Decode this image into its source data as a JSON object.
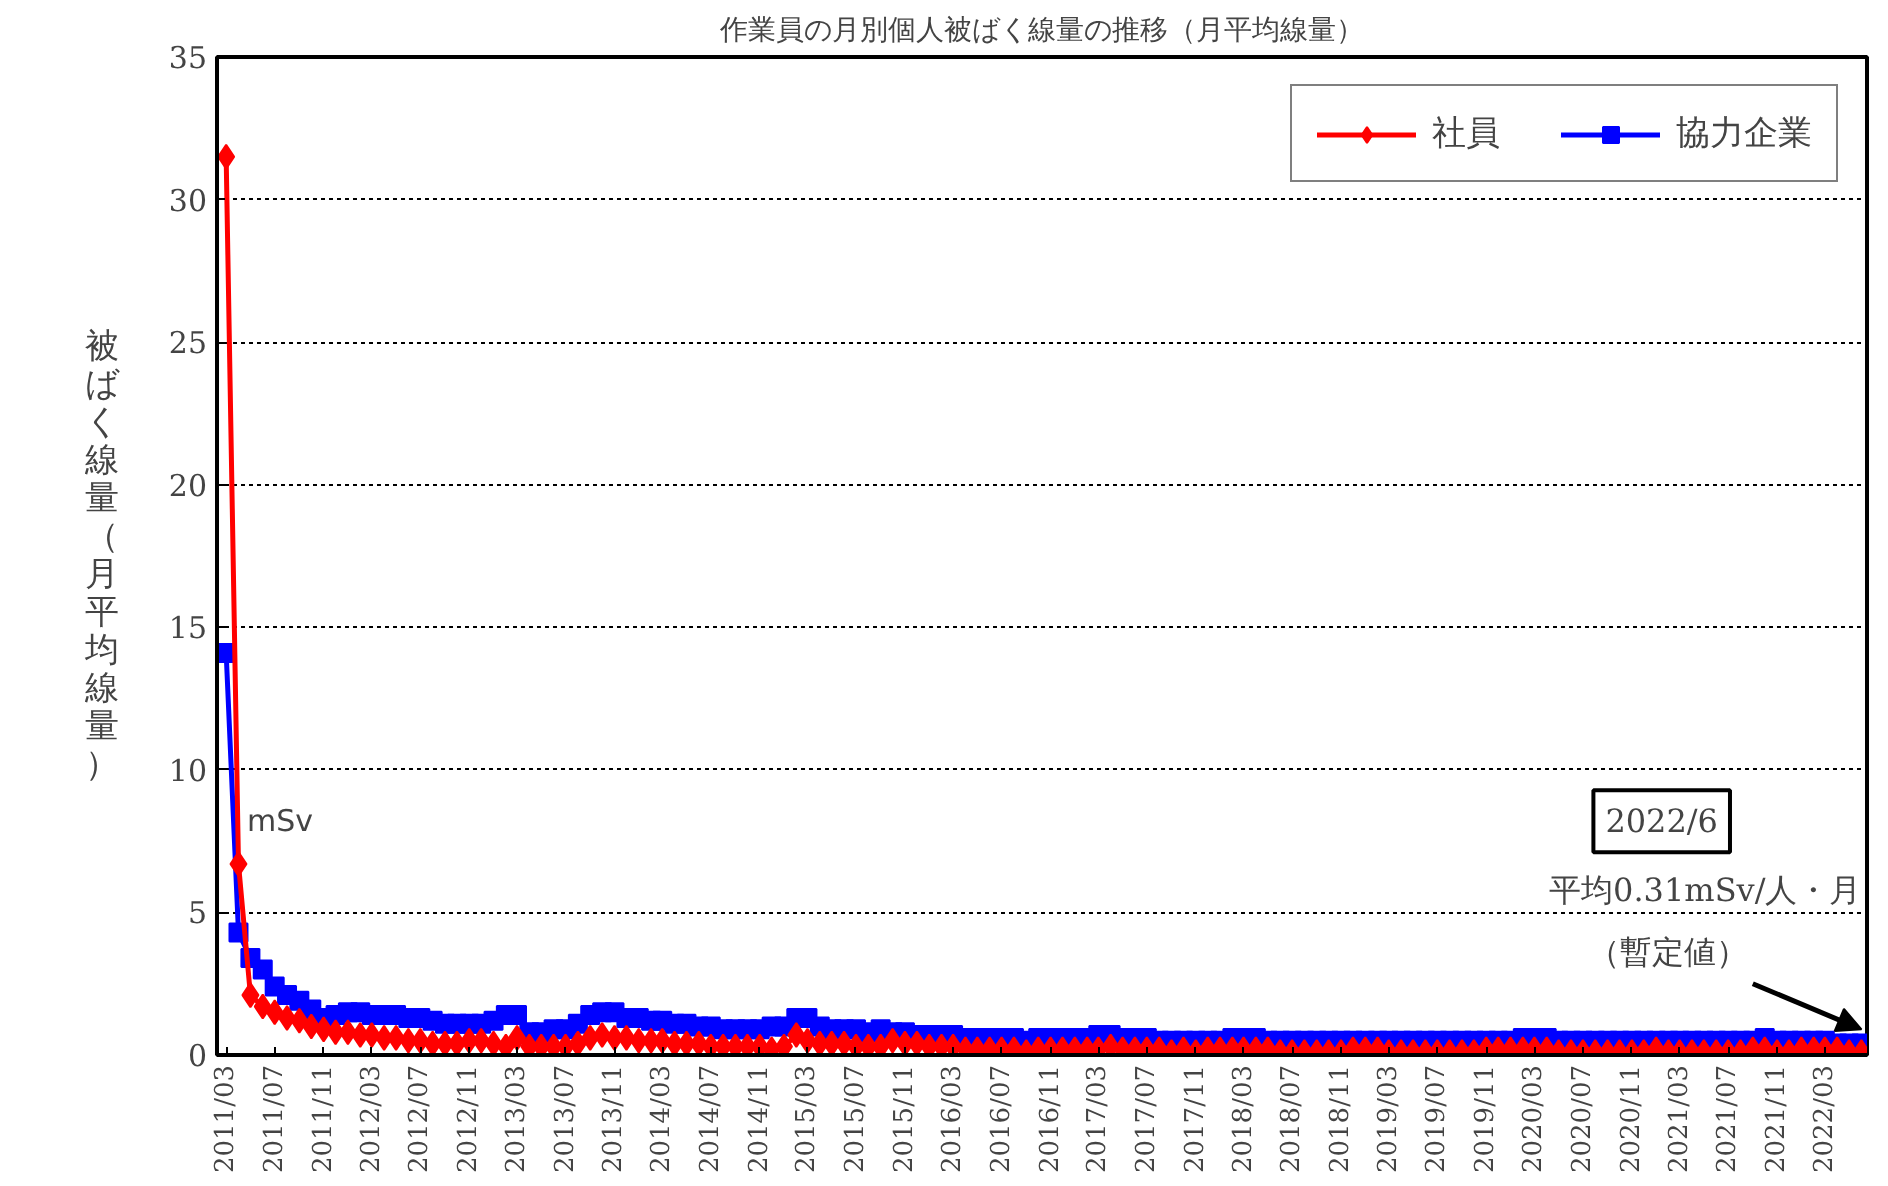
{
  "chart_data": {
    "type": "line",
    "title": "作業員の月別個人被ばく線量の推移（月平均線量）",
    "ylabel": "被ばく線量（月平均線量）",
    "x": [
      "2011-03",
      "2011-04",
      "2011-05",
      "2011-06",
      "2011-07",
      "2011-08",
      "2011-09",
      "2011-10",
      "2011-11",
      "2011-12",
      "2012-01",
      "2012-02",
      "2012-03",
      "2012-04",
      "2012-05",
      "2012-06",
      "2012-07",
      "2012-08",
      "2012-09",
      "2012-10",
      "2012-11",
      "2012-12",
      "2013-01",
      "2013-02",
      "2013-03",
      "2013-04",
      "2013-05",
      "2013-06",
      "2013-07",
      "2013-08",
      "2013-09",
      "2013-10",
      "2013-11",
      "2013-12",
      "2014-01",
      "2014-02",
      "2014-03",
      "2014-04",
      "2014-05",
      "2014-06",
      "2014-07",
      "2014-08",
      "2014-09",
      "2014-10",
      "2014-11",
      "2014-12",
      "2015-01",
      "2015-02",
      "2015-03",
      "2015-04",
      "2015-05",
      "2015-06",
      "2015-07",
      "2015-08",
      "2015-09",
      "2015-10",
      "2015-11",
      "2015-12",
      "2016-01",
      "2016-02",
      "2016-03",
      "2016-04",
      "2016-05",
      "2016-06",
      "2016-07",
      "2016-08",
      "2016-09",
      "2016-10",
      "2016-11",
      "2016-12",
      "2017-01",
      "2017-02",
      "2017-03",
      "2017-04",
      "2017-05",
      "2017-06",
      "2017-07",
      "2017-08",
      "2017-09",
      "2017-10",
      "2017-11",
      "2017-12",
      "2018-01",
      "2018-02",
      "2018-03",
      "2018-04",
      "2018-05",
      "2018-06",
      "2018-07",
      "2018-08",
      "2018-09",
      "2018-10",
      "2018-11",
      "2018-12",
      "2019-01",
      "2019-02",
      "2019-03",
      "2019-04",
      "2019-05",
      "2019-06",
      "2019-07",
      "2019-08",
      "2019-09",
      "2019-10",
      "2019-11",
      "2019-12",
      "2020-01",
      "2020-02",
      "2020-03",
      "2020-04",
      "2020-05",
      "2020-06",
      "2020-07",
      "2020-08",
      "2020-09",
      "2020-10",
      "2020-11",
      "2020-12",
      "2021-01",
      "2021-02",
      "2021-03",
      "2021-04",
      "2021-05",
      "2021-06",
      "2021-07",
      "2021-08",
      "2021-09",
      "2021-10",
      "2021-11",
      "2021-12",
      "2022-01",
      "2022-02",
      "2022-03",
      "2022-04",
      "2022-05",
      "2022-06"
    ],
    "series": [
      {
        "name": "社員",
        "color": "#ff0000",
        "marker": "diamond",
        "values": [
          31.5,
          6.7,
          2.1,
          1.7,
          1.5,
          1.3,
          1.2,
          1.0,
          0.9,
          0.8,
          0.8,
          0.7,
          0.7,
          0.6,
          0.6,
          0.5,
          0.5,
          0.4,
          0.4,
          0.4,
          0.5,
          0.5,
          0.4,
          0.3,
          0.6,
          0.3,
          0.3,
          0.3,
          0.3,
          0.4,
          0.6,
          0.7,
          0.6,
          0.6,
          0.5,
          0.5,
          0.5,
          0.4,
          0.4,
          0.4,
          0.3,
          0.3,
          0.3,
          0.3,
          0.3,
          0.2,
          0.3,
          0.7,
          0.5,
          0.4,
          0.4,
          0.4,
          0.3,
          0.3,
          0.3,
          0.5,
          0.4,
          0.4,
          0.3,
          0.3,
          0.3,
          0.2,
          0.2,
          0.2,
          0.2,
          0.2,
          0.1,
          0.2,
          0.2,
          0.2,
          0.2,
          0.2,
          0.2,
          0.3,
          0.2,
          0.2,
          0.2,
          0.2,
          0.1,
          0.2,
          0.1,
          0.2,
          0.2,
          0.2,
          0.2,
          0.2,
          0.2,
          0.1,
          0.1,
          0.1,
          0.1,
          0.1,
          0.1,
          0.2,
          0.2,
          0.2,
          0.1,
          0.1,
          0.1,
          0.1,
          0.1,
          0.1,
          0.1,
          0.1,
          0.2,
          0.2,
          0.2,
          0.2,
          0.2,
          0.2,
          0.1,
          0.1,
          0.1,
          0.1,
          0.1,
          0.1,
          0.1,
          0.1,
          0.2,
          0.1,
          0.1,
          0.1,
          0.1,
          0.1,
          0.1,
          0.1,
          0.2,
          0.2,
          0.1,
          0.1,
          0.2,
          0.2,
          0.2,
          0.2,
          0.1,
          0.1
        ]
      },
      {
        "name": "協力企業",
        "color": "#0000ff",
        "marker": "square",
        "values": [
          14.1,
          4.3,
          3.4,
          3.0,
          2.4,
          2.1,
          1.9,
          1.6,
          1.3,
          1.4,
          1.5,
          1.5,
          1.4,
          1.4,
          1.4,
          1.3,
          1.3,
          1.2,
          1.1,
          1.1,
          1.1,
          1.1,
          1.2,
          1.4,
          1.4,
          0.8,
          0.8,
          0.9,
          0.9,
          1.1,
          1.4,
          1.5,
          1.5,
          1.3,
          1.3,
          1.2,
          1.2,
          1.1,
          1.1,
          1.0,
          1.0,
          0.9,
          0.9,
          0.9,
          0.9,
          1.0,
          1.0,
          1.3,
          1.3,
          1.0,
          0.9,
          0.9,
          0.9,
          0.8,
          0.9,
          0.8,
          0.8,
          0.7,
          0.7,
          0.7,
          0.7,
          0.6,
          0.6,
          0.6,
          0.6,
          0.6,
          0.5,
          0.6,
          0.6,
          0.6,
          0.6,
          0.6,
          0.7,
          0.7,
          0.6,
          0.6,
          0.6,
          0.5,
          0.5,
          0.5,
          0.5,
          0.5,
          0.5,
          0.6,
          0.6,
          0.6,
          0.5,
          0.5,
          0.5,
          0.5,
          0.5,
          0.5,
          0.5,
          0.5,
          0.5,
          0.5,
          0.5,
          0.5,
          0.5,
          0.5,
          0.5,
          0.5,
          0.5,
          0.5,
          0.5,
          0.5,
          0.5,
          0.6,
          0.6,
          0.6,
          0.5,
          0.5,
          0.5,
          0.5,
          0.5,
          0.5,
          0.5,
          0.5,
          0.5,
          0.5,
          0.5,
          0.5,
          0.5,
          0.5,
          0.5,
          0.5,
          0.5,
          0.6,
          0.5,
          0.5,
          0.5,
          0.5,
          0.5,
          0.4,
          0.4,
          0.4
        ]
      }
    ],
    "xlim": [
      "2011-02-06",
      "2022-06-15"
    ],
    "ylim": [
      0,
      35
    ],
    "yticks": [
      0,
      5,
      10,
      15,
      20,
      25,
      30,
      35
    ],
    "xticks": [
      {
        "value": "2011-03",
        "label": "2011/03"
      },
      {
        "value": "2011-07",
        "label": "2011/07"
      },
      {
        "value": "2011-11",
        "label": "2011/11"
      },
      {
        "value": "2012-03",
        "label": "2012/03"
      },
      {
        "value": "2012-07",
        "label": "2012/07"
      },
      {
        "value": "2012-11",
        "label": "2012/11"
      },
      {
        "value": "2013-03",
        "label": "2013/03"
      },
      {
        "value": "2013-07",
        "label": "2013/07"
      },
      {
        "value": "2013-11",
        "label": "2013/11"
      },
      {
        "value": "2014-03",
        "label": "2014/03"
      },
      {
        "value": "2014-07",
        "label": "2014/07"
      },
      {
        "value": "2014-11",
        "label": "2014/11"
      },
      {
        "value": "2015-03",
        "label": "2015/03"
      },
      {
        "value": "2015-07",
        "label": "2015/07"
      },
      {
        "value": "2015-11",
        "label": "2015/11"
      },
      {
        "value": "2016-03",
        "label": "2016/03"
      },
      {
        "value": "2016-07",
        "label": "2016/07"
      },
      {
        "value": "2016-11",
        "label": "2016/11"
      },
      {
        "value": "2017-03",
        "label": "2017/03"
      },
      {
        "value": "2017-07",
        "label": "2017/07"
      },
      {
        "value": "2017-11",
        "label": "2017/11"
      },
      {
        "value": "2018-03",
        "label": "2018/03"
      },
      {
        "value": "2018-07",
        "label": "2018/07"
      },
      {
        "value": "2018-11",
        "label": "2018/11"
      },
      {
        "value": "2019-03",
        "label": "2019/03"
      },
      {
        "value": "2019-07",
        "label": "2019/07"
      },
      {
        "value": "2019-11",
        "label": "2019/11"
      },
      {
        "value": "2020-03",
        "label": "2020/03"
      },
      {
        "value": "2020-07",
        "label": "2020/07"
      },
      {
        "value": "2020-11",
        "label": "2020/11"
      },
      {
        "value": "2021-03",
        "label": "2021/03"
      },
      {
        "value": "2021-07",
        "label": "2021/07"
      },
      {
        "value": "2021-11",
        "label": "2021/11"
      },
      {
        "value": "2022-03",
        "label": "2022/03"
      }
    ],
    "annotations": [
      "2022/6",
      "平均0.31mSv/人・月",
      {
        "text": "（暫定値）",
        "x": "2022-06",
        "y": 0.4
      },
      "mSv"
    ],
    "grid": "y",
    "legend": "top right",
    "line_style": "solid"
  }
}
